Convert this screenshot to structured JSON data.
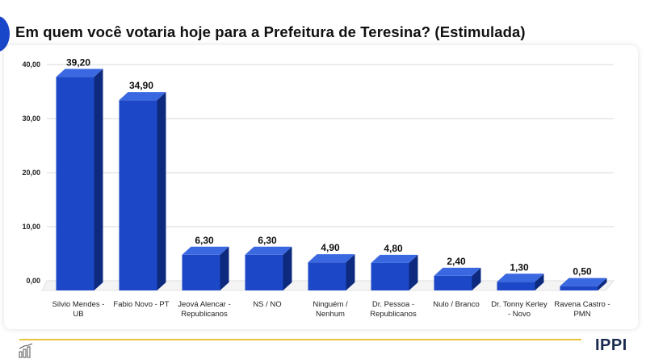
{
  "title": "Em quem você votaria hoje para a Prefeitura de Teresina? (Estimulada)",
  "logo": "IPPI",
  "colors": {
    "bar_front": "#1c48c8",
    "bar_side": "#0d2a7e",
    "bar_top": "#3a68e0",
    "accent": "#e8c43a"
  },
  "chart_data": {
    "type": "bar",
    "categories": [
      [
        "Silvio Mendes -",
        "UB"
      ],
      [
        "Fabio Novo - PT"
      ],
      [
        "Jeová Alencar -",
        "Republicanos"
      ],
      [
        "NS / NO"
      ],
      [
        "Ninguém /",
        "Nenhum"
      ],
      [
        "Dr. Pessoa -",
        "Republicanos"
      ],
      [
        "Nulo / Branco"
      ],
      [
        "Dr. Tonny Kerley",
        "- Novo"
      ],
      [
        "Ravena Castro -",
        "PMN"
      ]
    ],
    "values": [
      39.2,
      34.9,
      6.3,
      6.3,
      4.9,
      4.8,
      2.4,
      1.3,
      0.5
    ],
    "value_labels": [
      "39,20",
      "34,90",
      "6,30",
      "6,30",
      "4,90",
      "4,80",
      "2,40",
      "1,30",
      "0,50"
    ],
    "y_ticks": [
      "0,00",
      "10,00",
      "20,00",
      "30,00",
      "40,00"
    ],
    "ylim": [
      0,
      40
    ],
    "grid": true
  }
}
